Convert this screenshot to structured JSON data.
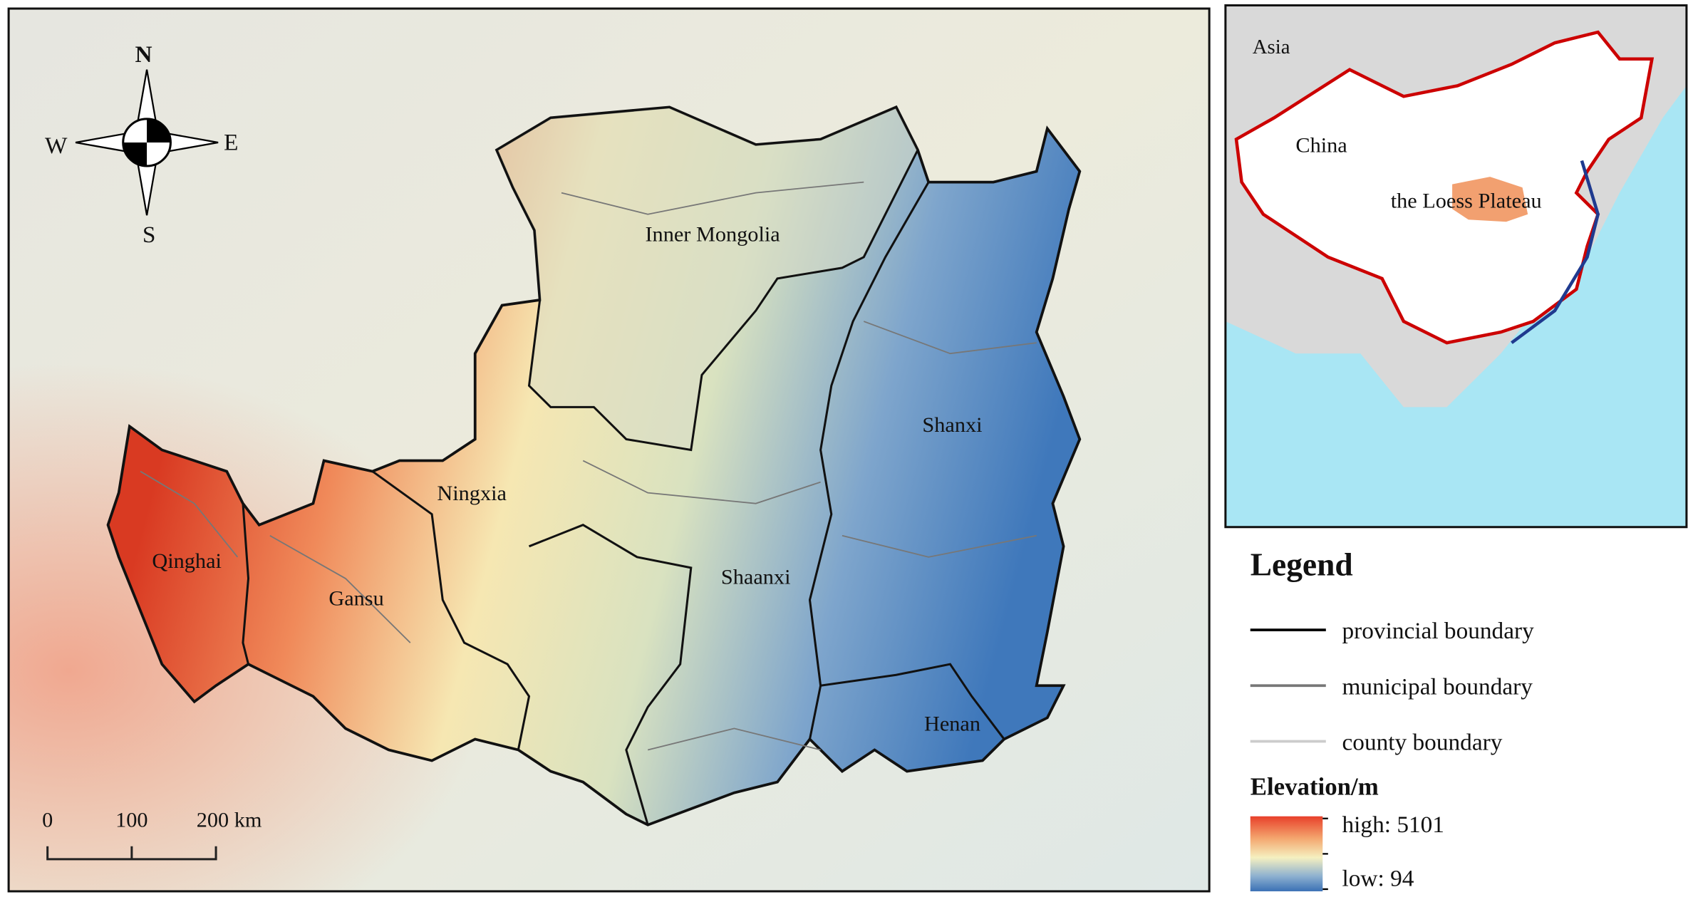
{
  "map": {
    "compass": {
      "north": "N",
      "south": "S",
      "west": "W",
      "east": "E"
    },
    "scale_bar": {
      "labels": [
        "0",
        "100",
        "200 km"
      ]
    },
    "regions": [
      "Inner Mongolia",
      "Shanxi",
      "Ningxia",
      "Shaanxi",
      "Qinghai",
      "Gansu",
      "Henan"
    ]
  },
  "inset": {
    "labels": [
      "Asia",
      "China",
      "the Loess Plateau"
    ]
  },
  "legend": {
    "title": "Legend",
    "entries": [
      "provincial boundary",
      "municipal boundary",
      "county boundary"
    ],
    "elevation": {
      "title": "Elevation/m",
      "high": "high: 5101",
      "low": "low: 94"
    }
  }
}
